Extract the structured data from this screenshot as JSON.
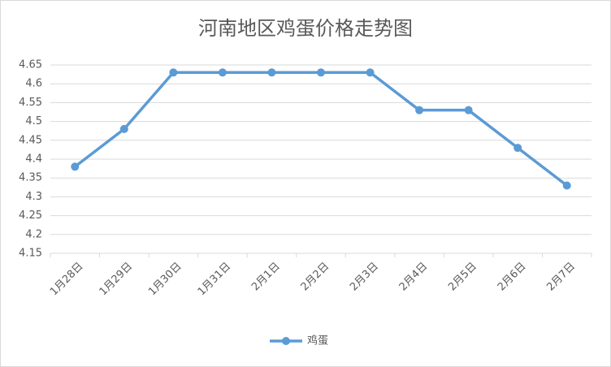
{
  "chart_data": {
    "type": "line",
    "title": "河南地区鸡蛋价格走势图",
    "categories": [
      "1月28日",
      "1月29日",
      "1月30日",
      "1月31日",
      "2月1日",
      "2月2日",
      "2月3日",
      "2月4日",
      "2月5日",
      "2月6日",
      "2月7日"
    ],
    "series": [
      {
        "name": "鸡蛋",
        "color": "#5b9bd5",
        "values": [
          4.38,
          4.48,
          4.63,
          4.63,
          4.63,
          4.63,
          4.63,
          4.53,
          4.53,
          4.43,
          4.33
        ]
      }
    ],
    "ylim": [
      4.15,
      4.65
    ],
    "yticks": [
      4.15,
      4.2,
      4.25,
      4.3,
      4.35,
      4.4,
      4.45,
      4.5,
      4.55,
      4.6,
      4.65
    ],
    "grid": true,
    "legend": "bottom"
  }
}
